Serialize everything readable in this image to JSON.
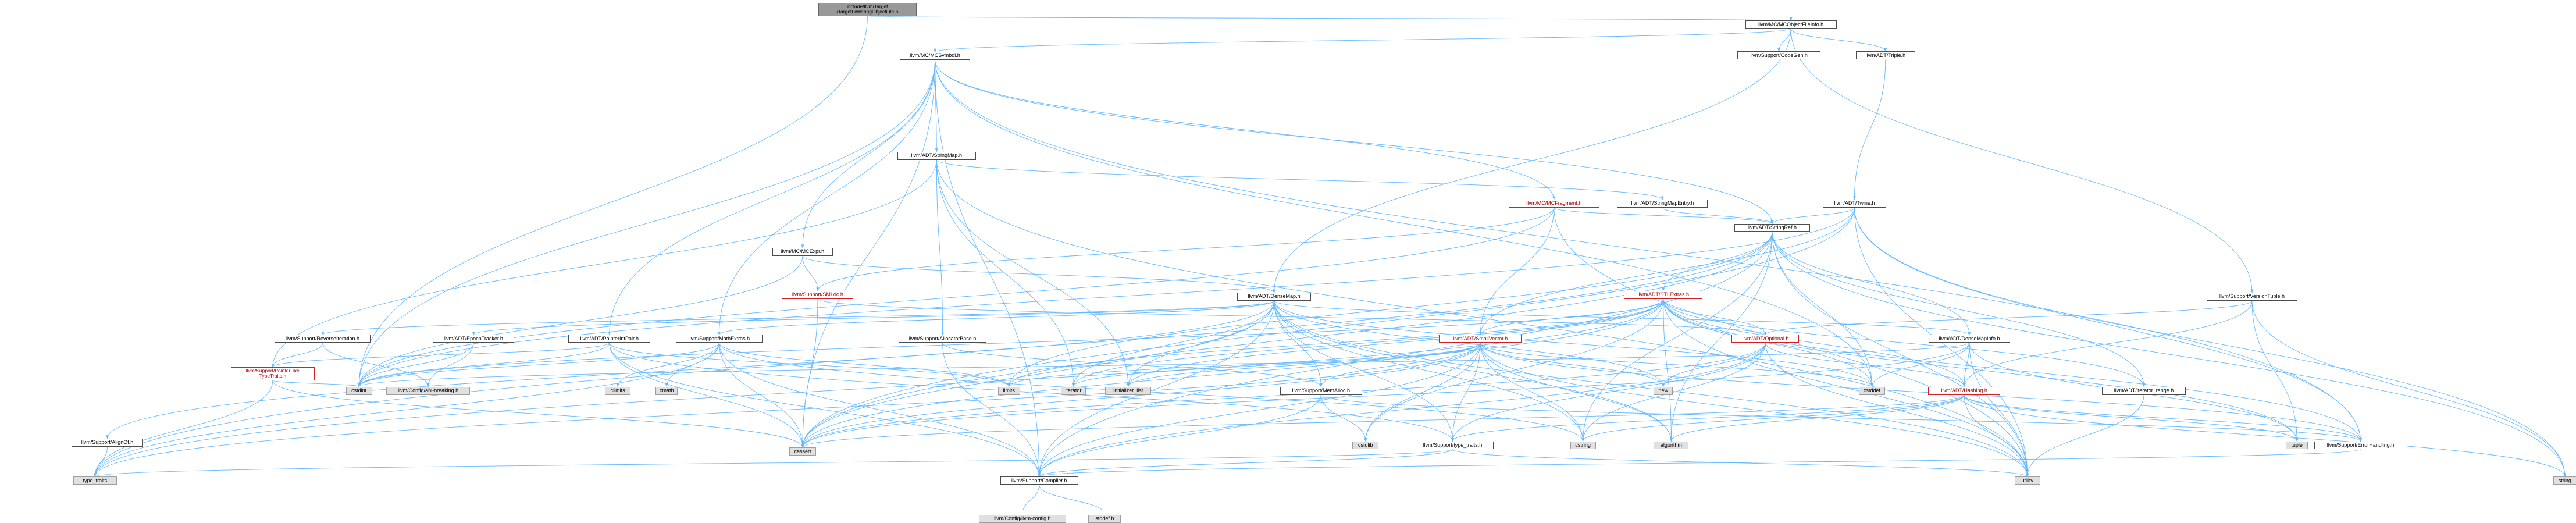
{
  "graph": {
    "edge_color": "#63b8ff",
    "nodes": [
      {
        "id": "root",
        "label": "include/llvm/Target\n/TargetLoweringObjectFile.h",
        "style": "root"
      },
      {
        "id": "mcofi",
        "label": "llvm/MC/MCObjectFileInfo.h",
        "style": "normal"
      },
      {
        "id": "codegen",
        "label": "llvm/Support/CodeGen.h",
        "style": "normal"
      },
      {
        "id": "triple",
        "label": "llvm/ADT/Triple.h",
        "style": "normal"
      },
      {
        "id": "mcsymbol",
        "label": "llvm/MC/MCSymbol.h",
        "style": "normal"
      },
      {
        "id": "stringmap",
        "label": "llvm/ADT/StringMap.h",
        "style": "normal"
      },
      {
        "id": "twine",
        "label": "llvm/ADT/Twine.h",
        "style": "normal"
      },
      {
        "id": "mcfragment",
        "label": "llvm/MC/MCFragment.h",
        "style": "red"
      },
      {
        "id": "stringmapentry",
        "label": "llvm/ADT/StringMapEntry.h",
        "style": "normal"
      },
      {
        "id": "stringref",
        "label": "llvm/ADT/StringRef.h",
        "style": "normal"
      },
      {
        "id": "mcexpr",
        "label": "llvm/MC/MCExpr.h",
        "style": "normal"
      },
      {
        "id": "smloc",
        "label": "llvm/Support/SMLoc.h",
        "style": "red"
      },
      {
        "id": "stlextras",
        "label": "llvm/ADT/STLExtras.h",
        "style": "red"
      },
      {
        "id": "densemap",
        "label": "llvm/ADT/DenseMap.h",
        "style": "normal"
      },
      {
        "id": "versiontuple",
        "label": "llvm/Support/VersionTuple.h",
        "style": "normal"
      },
      {
        "id": "reverseiter",
        "label": "llvm/Support/ReverseIteration.h",
        "style": "normal"
      },
      {
        "id": "epochtracker",
        "label": "llvm/ADT/EpochTracker.h",
        "style": "normal"
      },
      {
        "id": "pointerintpair",
        "label": "llvm/ADT/PointerIntPair.h",
        "style": "normal"
      },
      {
        "id": "mathextras",
        "label": "llvm/Support/MathExtras.h",
        "style": "normal"
      },
      {
        "id": "allocatorbase",
        "label": "llvm/Support/AllocatorBase.h",
        "style": "normal"
      },
      {
        "id": "smallvector",
        "label": "llvm/ADT/SmallVector.h",
        "style": "red"
      },
      {
        "id": "optional",
        "label": "llvm/ADT/Optional.h",
        "style": "red"
      },
      {
        "id": "densemapinfo",
        "label": "llvm/ADT/DenseMapInfo.h",
        "style": "normal"
      },
      {
        "id": "ptrliketraits",
        "label": "llvm/Support/PointerLike\nTypeTraits.h",
        "style": "red"
      },
      {
        "id": "cstdint",
        "label": "cstdint",
        "style": "ext"
      },
      {
        "id": "abibreaking",
        "label": "llvm/Config/abi-breaking.h",
        "style": "ext"
      },
      {
        "id": "climits",
        "label": "climits",
        "style": "ext"
      },
      {
        "id": "cmath",
        "label": "cmath",
        "style": "ext"
      },
      {
        "id": "limits",
        "label": "limits",
        "style": "ext"
      },
      {
        "id": "iterator",
        "label": "iterator",
        "style": "ext"
      },
      {
        "id": "initlist",
        "label": "initializer_list",
        "style": "ext"
      },
      {
        "id": "new",
        "label": "new",
        "style": "ext"
      },
      {
        "id": "cstddef",
        "label": "cstddef",
        "style": "ext"
      },
      {
        "id": "hashing",
        "label": "llvm/ADT/Hashing.h",
        "style": "red"
      },
      {
        "id": "iterrange",
        "label": "llvm/ADT/iterator_range.h",
        "style": "normal"
      },
      {
        "id": "memalloc",
        "label": "llvm/Support/MemAlloc.h",
        "style": "normal"
      },
      {
        "id": "alignof",
        "label": "llvm/Support/AlignOf.h",
        "style": "normal"
      },
      {
        "id": "cassert",
        "label": "cassert",
        "style": "ext"
      },
      {
        "id": "cstring",
        "label": "cstring",
        "style": "ext"
      },
      {
        "id": "algorithm",
        "label": "algorithm",
        "style": "ext"
      },
      {
        "id": "tuple",
        "label": "tuple",
        "style": "ext"
      },
      {
        "id": "errorhandling",
        "label": "llvm/Support/ErrorHandling.h",
        "style": "normal"
      },
      {
        "id": "cstdlib",
        "label": "cstdlib",
        "style": "ext"
      },
      {
        "id": "typetraitsllvm",
        "label": "llvm/Support/type_traits.h",
        "style": "normal"
      },
      {
        "id": "typetraits",
        "label": "type_traits",
        "style": "ext"
      },
      {
        "id": "compiler",
        "label": "llvm/Support/Compiler.h",
        "style": "normal"
      },
      {
        "id": "utility",
        "label": "utility",
        "style": "ext"
      },
      {
        "id": "string",
        "label": "string",
        "style": "ext"
      },
      {
        "id": "llvmconfig",
        "label": "llvm/Config/llvm-config.h",
        "style": "ext"
      },
      {
        "id": "stddef",
        "label": "stddef.h",
        "style": "ext"
      }
    ],
    "edges": [
      [
        "root",
        "mcofi"
      ],
      [
        "root",
        "cstdint"
      ],
      [
        "mcofi",
        "codegen"
      ],
      [
        "mcofi",
        "triple"
      ],
      [
        "mcofi",
        "mcsymbol"
      ],
      [
        "mcofi",
        "versiontuple"
      ],
      [
        "mcofi",
        "densemap"
      ],
      [
        "triple",
        "twine"
      ],
      [
        "mcsymbol",
        "stringmap"
      ],
      [
        "mcsymbol",
        "mcexpr"
      ],
      [
        "mcsymbol",
        "mcfragment"
      ],
      [
        "mcsymbol",
        "stringref"
      ],
      [
        "mcsymbol",
        "pointerintpair"
      ],
      [
        "mcsymbol",
        "mathextras"
      ],
      [
        "mcsymbol",
        "errorhandling"
      ],
      [
        "mcsymbol",
        "cassert"
      ],
      [
        "mcsymbol",
        "cstddef"
      ],
      [
        "mcsymbol",
        "cstdint"
      ],
      [
        "mcsymbol",
        "compiler"
      ],
      [
        "stringmap",
        "stringmapentry"
      ],
      [
        "stringmap",
        "allocatorbase"
      ],
      [
        "stringmap",
        "ptrliketraits"
      ],
      [
        "stringmap",
        "iterator"
      ],
      [
        "stringmap",
        "initlist"
      ],
      [
        "stringmap",
        "utility"
      ],
      [
        "stringmapentry",
        "stringref"
      ],
      [
        "twine",
        "stringref"
      ],
      [
        "twine",
        "smallvector"
      ],
      [
        "twine",
        "errorhandling"
      ],
      [
        "twine",
        "cassert"
      ],
      [
        "twine",
        "cstdint"
      ],
      [
        "twine",
        "string"
      ],
      [
        "twine",
        "utility"
      ],
      [
        "mcfragment",
        "stringref"
      ],
      [
        "mcfragment",
        "smallvector"
      ],
      [
        "mcfragment",
        "smloc"
      ],
      [
        "mcfragment",
        "cstdint"
      ],
      [
        "mcfragment",
        "utility"
      ],
      [
        "stringref",
        "stlextras"
      ],
      [
        "stringref",
        "densemapinfo"
      ],
      [
        "stringref",
        "iterrange"
      ],
      [
        "stringref",
        "compiler"
      ],
      [
        "stringref",
        "algorithm"
      ],
      [
        "stringref",
        "cassert"
      ],
      [
        "stringref",
        "cstddef"
      ],
      [
        "stringref",
        "cstring"
      ],
      [
        "stringref",
        "limits"
      ],
      [
        "stringref",
        "string"
      ],
      [
        "stringref",
        "typetraits"
      ],
      [
        "stringref",
        "utility"
      ],
      [
        "mcexpr",
        "densemap"
      ],
      [
        "mcexpr",
        "smloc"
      ],
      [
        "mcexpr",
        "cstdint"
      ],
      [
        "smloc",
        "optional"
      ],
      [
        "smloc",
        "cassert"
      ],
      [
        "stlextras",
        "smallvector"
      ],
      [
        "stlextras",
        "optional"
      ],
      [
        "stlextras",
        "hashing"
      ],
      [
        "stlextras",
        "iterrange"
      ],
      [
        "stlextras",
        "errorhandling"
      ],
      [
        "stlextras",
        "algorithm"
      ],
      [
        "stlextras",
        "cassert"
      ],
      [
        "stlextras",
        "cstddef"
      ],
      [
        "stlextras",
        "cstdint"
      ],
      [
        "stlextras",
        "cstdlib"
      ],
      [
        "stlextras",
        "initlist"
      ],
      [
        "stlextras",
        "iterator"
      ],
      [
        "stlextras",
        "limits"
      ],
      [
        "stlextras",
        "tuple"
      ],
      [
        "stlextras",
        "typetraits"
      ],
      [
        "stlextras",
        "utility"
      ],
      [
        "densemap",
        "densemapinfo"
      ],
      [
        "densemap",
        "epochtracker"
      ],
      [
        "densemap",
        "alignof"
      ],
      [
        "densemap",
        "compiler"
      ],
      [
        "densemap",
        "mathextras"
      ],
      [
        "densemap",
        "memalloc"
      ],
      [
        "densemap",
        "reverseiter"
      ],
      [
        "densemap",
        "typetraitsllvm"
      ],
      [
        "densemap",
        "algorithm"
      ],
      [
        "densemap",
        "cassert"
      ],
      [
        "densemap",
        "cstddef"
      ],
      [
        "densemap",
        "cstring"
      ],
      [
        "densemap",
        "initlist"
      ],
      [
        "densemap",
        "iterator"
      ],
      [
        "densemap",
        "new"
      ],
      [
        "densemap",
        "utility"
      ],
      [
        "versiontuple",
        "optional"
      ],
      [
        "versiontuple",
        "hashing"
      ],
      [
        "versiontuple",
        "tuple"
      ],
      [
        "versiontuple",
        "string"
      ],
      [
        "reverseiter",
        "ptrliketraits"
      ],
      [
        "reverseiter",
        "abibreaking"
      ],
      [
        "epochtracker",
        "abibreaking"
      ],
      [
        "epochtracker",
        "cstdint"
      ],
      [
        "pointerintpair",
        "ptrliketraits"
      ],
      [
        "pointerintpair",
        "compiler"
      ],
      [
        "pointerintpair",
        "typetraitsllvm"
      ],
      [
        "pointerintpair",
        "cassert"
      ],
      [
        "pointerintpair",
        "cstdint"
      ],
      [
        "pointerintpair",
        "limits"
      ],
      [
        "mathextras",
        "compiler"
      ],
      [
        "mathextras",
        "cassert"
      ],
      [
        "mathextras",
        "climits"
      ],
      [
        "mathextras",
        "cmath"
      ],
      [
        "mathextras",
        "cstdint"
      ],
      [
        "mathextras",
        "cstring"
      ],
      [
        "mathextras",
        "limits"
      ],
      [
        "mathextras",
        "typetraits"
      ],
      [
        "allocatorbase",
        "compiler"
      ],
      [
        "allocatorbase",
        "memalloc"
      ],
      [
        "smallvector",
        "compiler"
      ],
      [
        "smallvector",
        "errorhandling"
      ],
      [
        "smallvector",
        "memalloc"
      ],
      [
        "smallvector",
        "typetraitsllvm"
      ],
      [
        "smallvector",
        "algorithm"
      ],
      [
        "smallvector",
        "cassert"
      ],
      [
        "smallvector",
        "cstddef"
      ],
      [
        "smallvector",
        "cstdlib"
      ],
      [
        "smallvector",
        "cstring"
      ],
      [
        "smallvector",
        "functional"
      ],
      [
        "smallvector",
        "initlist"
      ],
      [
        "smallvector",
        "iterator"
      ],
      [
        "smallvector",
        "limits"
      ],
      [
        "smallvector",
        "memory"
      ],
      [
        "smallvector",
        "new"
      ],
      [
        "smallvector",
        "typetraits"
      ],
      [
        "smallvector",
        "utility"
      ],
      [
        "optional",
        "hashing"
      ],
      [
        "optional",
        "compiler"
      ],
      [
        "optional",
        "typetraitsllvm"
      ],
      [
        "optional",
        "cassert"
      ],
      [
        "optional",
        "cstring"
      ],
      [
        "optional",
        "new"
      ],
      [
        "optional",
        "utility"
      ],
      [
        "densemapinfo",
        "hashing"
      ],
      [
        "densemapinfo",
        "cassert"
      ],
      [
        "densemapinfo",
        "cstddef"
      ],
      [
        "densemapinfo",
        "cstdint"
      ],
      [
        "densemapinfo",
        "tuple"
      ],
      [
        "densemapinfo",
        "utility"
      ],
      [
        "ptrliketraits",
        "typetraits"
      ],
      [
        "ptrliketraits",
        "cassert"
      ],
      [
        "ptrliketraits",
        "cstdint"
      ],
      [
        "hashing",
        "errorhandling"
      ],
      [
        "hashing",
        "typetraitsllvm"
      ],
      [
        "hashing",
        "algorithm"
      ],
      [
        "hashing",
        "cassert"
      ],
      [
        "hashing",
        "cstring"
      ],
      [
        "hashing",
        "string"
      ],
      [
        "hashing",
        "tuple"
      ],
      [
        "hashing",
        "utility"
      ],
      [
        "iterrange",
        "utility"
      ],
      [
        "memalloc",
        "compiler"
      ],
      [
        "memalloc",
        "errorhandling"
      ],
      [
        "memalloc",
        "cstdlib"
      ],
      [
        "alignof",
        "typetraits"
      ],
      [
        "typetraitsllvm",
        "compiler"
      ],
      [
        "typetraitsllvm",
        "typetraits"
      ],
      [
        "typetraitsllvm",
        "utility"
      ],
      [
        "errorhandling",
        "compiler"
      ],
      [
        "compiler",
        "llvmconfig"
      ],
      [
        "compiler",
        "stddef"
      ]
    ]
  }
}
